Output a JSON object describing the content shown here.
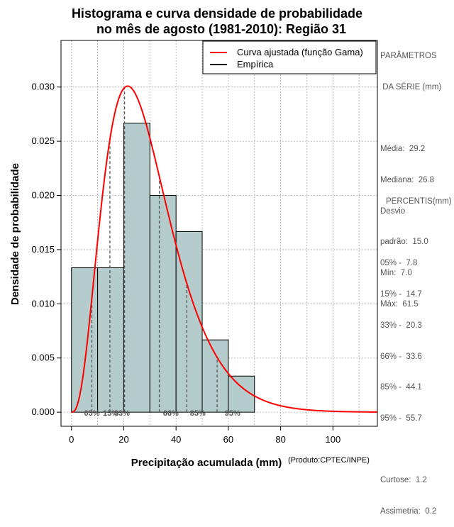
{
  "chart_data": {
    "type": "bar",
    "title_line1": "Histograma e curva densidade de probabilidade",
    "title_line2": "no mês de agosto (1981-2010): Região 31",
    "xlabel": "Precipitação acumulada (mm)",
    "ylabel": "Densidade de probabilidade",
    "credit": "(Produto:CPTEC/INPE)",
    "xlim": [
      -4,
      117
    ],
    "ylim": [
      -0.0013,
      0.0343
    ],
    "xticks": [
      0,
      20,
      40,
      60,
      80,
      100
    ],
    "yticks": [
      "0.000",
      "0.005",
      "0.010",
      "0.015",
      "0.020",
      "0.025",
      "0.030"
    ],
    "grid": true,
    "bins": [
      {
        "x0": 0,
        "x1": 10,
        "density": 0.01333
      },
      {
        "x0": 10,
        "x1": 20,
        "density": 0.01333
      },
      {
        "x0": 20,
        "x1": 30,
        "density": 0.02667
      },
      {
        "x0": 30,
        "x1": 40,
        "density": 0.02
      },
      {
        "x0": 40,
        "x1": 50,
        "density": 0.01667
      },
      {
        "x0": 50,
        "x1": 60,
        "density": 0.00667
      },
      {
        "x0": 60,
        "x1": 70,
        "density": 0.00333
      }
    ],
    "gamma_fit": {
      "mean": 29.2,
      "sd": 15.0
    },
    "percentile_lines": [
      {
        "label": "05%",
        "x": 7.8
      },
      {
        "label": "15%",
        "x": 14.7
      },
      {
        "label": "33%",
        "x": 20.3
      },
      {
        "label": "66%",
        "x": 33.6
      },
      {
        "label": "85%",
        "x": 44.1
      },
      {
        "label": "95%",
        "x": 55.7
      }
    ],
    "legend": {
      "placement": "top-right",
      "entries": [
        {
          "label": "Curva ajustada (função Gama)",
          "color": "#ff0000"
        },
        {
          "label": "Empírica",
          "color": "#000000"
        }
      ]
    },
    "colors": {
      "bar_fill": "#b4cccc",
      "curve": "#ff0000",
      "percentile": "#555555"
    }
  },
  "side_panel": {
    "params_title_1": "PARÂMETROS",
    "params_title_2": " DA SÉRIE (mm)",
    "media": "Média:  29.2",
    "mediana": "Mediana:  26.8",
    "desvio_1": "Desvio",
    "desvio_2": "padrão:  15.0",
    "min": "Mín:  7.0",
    "max": "Máx:  61.5",
    "percentis_title": "PERCENTIS(mm)",
    "percentis": [
      "05% -  7.8",
      "15% -  14.7",
      "33% -  20.3",
      "66% -  33.6",
      "85% -  44.1",
      "95% -  55.7"
    ],
    "curtose": "Curtose:  1.2",
    "assimetria": "Assimetria:  0.2"
  }
}
